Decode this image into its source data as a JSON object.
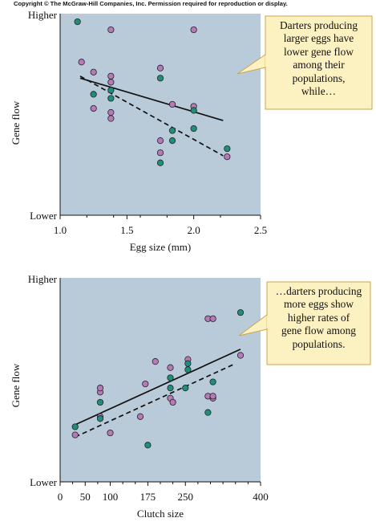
{
  "header": {
    "copyright": "Copyright © The McGraw-Hill Companies, Inc. Permission required for reproduction or display."
  },
  "colors": {
    "panel": "#b9cad9",
    "magenta": "#b77ab8",
    "teal": "#1f8f7b",
    "callout": "#fcf1c1",
    "callout_border": "#c9a64a"
  },
  "chart_data": [
    {
      "type": "scatter",
      "xlabel": "Egg size (mm)",
      "ylabel": "Gene flow",
      "y_ticks_text": {
        "top": "Higher",
        "bottom": "Lower"
      },
      "x_ticks": [
        "1.0",
        "1.5",
        "2.0",
        "2.5"
      ],
      "x_minor_ticks": [
        "1.2",
        "1.4",
        "1.6",
        "1.8",
        "2.2"
      ],
      "xlim": [
        1.0,
        2.5
      ],
      "ylim": [
        0,
        10
      ],
      "annotation": "Darters producing\nlarger eggs have\nlower gene flow\namong their\npopulations,\nwhile…",
      "series": [
        {
          "color": "magenta",
          "points": [
            [
              1.16,
              7.6
            ],
            [
              1.25,
              7.1
            ],
            [
              1.38,
              9.2
            ],
            [
              1.38,
              6.9
            ],
            [
              1.38,
              6.6
            ],
            [
              1.38,
              5.1
            ],
            [
              1.38,
              4.8
            ],
            [
              1.25,
              5.3
            ],
            [
              1.75,
              7.3
            ],
            [
              1.75,
              3.7
            ],
            [
              1.75,
              3.1
            ],
            [
              1.84,
              5.5
            ],
            [
              2.0,
              9.2
            ],
            [
              2.0,
              5.4
            ],
            [
              2.25,
              2.9
            ]
          ]
        },
        {
          "color": "teal",
          "points": [
            [
              1.13,
              9.6
            ],
            [
              1.25,
              6.0
            ],
            [
              1.38,
              6.2
            ],
            [
              1.38,
              5.8
            ],
            [
              1.75,
              6.8
            ],
            [
              1.75,
              2.6
            ],
            [
              1.84,
              4.2
            ],
            [
              1.84,
              3.7
            ],
            [
              2.0,
              5.2
            ],
            [
              2.0,
              4.3
            ],
            [
              2.25,
              3.3
            ]
          ]
        },
        {
          "name": "solid",
          "kind": "fit-solid",
          "points": [
            [
              1.15,
              6.8
            ],
            [
              2.22,
              4.7
            ]
          ]
        },
        {
          "name": "dashed",
          "kind": "fit-dashed",
          "points": [
            [
              1.15,
              6.9
            ],
            [
              2.22,
              2.95
            ]
          ]
        }
      ]
    },
    {
      "type": "scatter",
      "xlabel": "Clutch size",
      "ylabel": "Gene flow",
      "y_ticks_text": {
        "top": "Higher",
        "bottom": "Lower"
      },
      "x_ticks": [
        "0",
        "50",
        "100",
        "175",
        "250",
        "400"
      ],
      "x_minor_ticks": [
        "25",
        "75",
        "125",
        "150",
        "200",
        "225",
        "275",
        "300",
        "325",
        "350",
        "375"
      ],
      "xlim": [
        0,
        400
      ],
      "ylim": [
        0,
        10
      ],
      "annotation": "…darters producing\nmore eggs show\nhigher rates of\ngene flow among\npopulations.",
      "series": [
        {
          "color": "magenta",
          "points": [
            [
              30,
              2.3
            ],
            [
              80,
              4.4
            ],
            [
              80,
              4.6
            ],
            [
              80,
              3.2
            ],
            [
              100,
              2.4
            ],
            [
              160,
              3.2
            ],
            [
              170,
              4.8
            ],
            [
              190,
              5.9
            ],
            [
              220,
              5.6
            ],
            [
              220,
              4.1
            ],
            [
              225,
              3.9
            ],
            [
              255,
              6.0
            ],
            [
              295,
              8.0
            ],
            [
              305,
              8.0
            ],
            [
              295,
              4.2
            ],
            [
              305,
              4.1
            ],
            [
              305,
              4.2
            ],
            [
              360,
              6.2
            ]
          ]
        },
        {
          "color": "teal",
          "points": [
            [
              30,
              2.7
            ],
            [
              80,
              3.9
            ],
            [
              80,
              3.1
            ],
            [
              175,
              1.8
            ],
            [
              220,
              5.1
            ],
            [
              220,
              4.6
            ],
            [
              250,
              4.6
            ],
            [
              255,
              5.5
            ],
            [
              255,
              5.8
            ],
            [
              295,
              3.4
            ],
            [
              305,
              4.9
            ],
            [
              360,
              8.3
            ]
          ]
        },
        {
          "name": "solid",
          "kind": "fit-solid",
          "points": [
            [
              30,
              2.8
            ],
            [
              360,
              6.5
            ]
          ]
        },
        {
          "name": "dashed",
          "kind": "fit-dashed",
          "points": [
            [
              30,
              2.2
            ],
            [
              350,
              5.8
            ]
          ]
        }
      ]
    }
  ]
}
